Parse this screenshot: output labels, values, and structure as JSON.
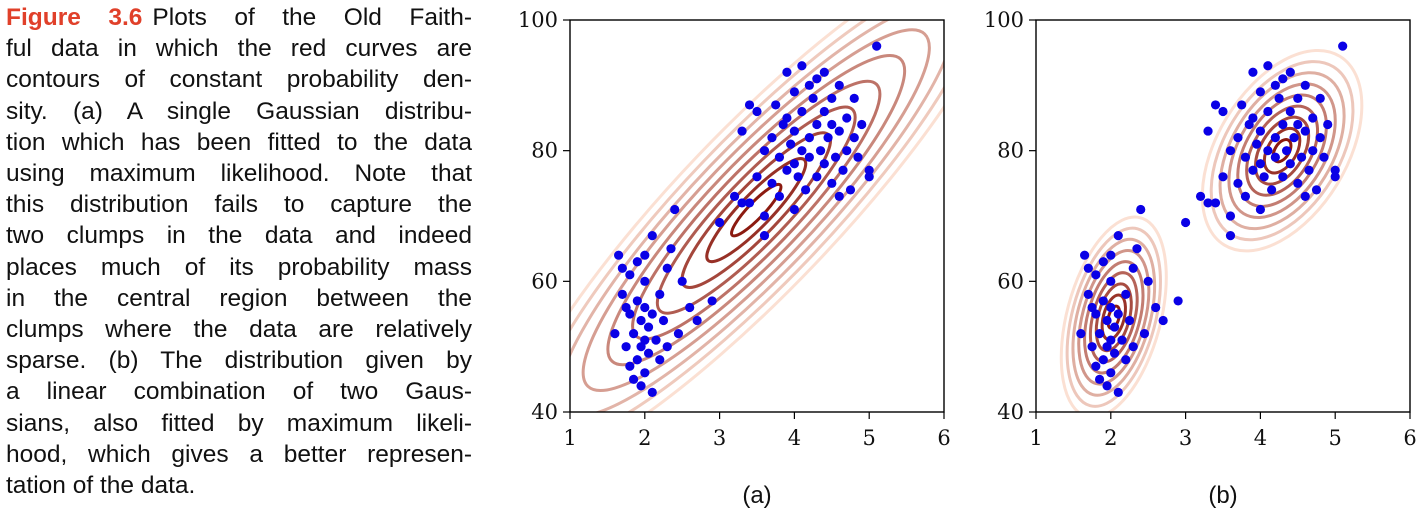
{
  "caption": {
    "figure_label": "Figure 3.6",
    "lines": [
      "Plots of the Old Faith-",
      "ful data in which the red curves are",
      "contours of constant probability den-",
      "sity. (a) A single Gaussian distribu-",
      "tion which has been fitted to the data",
      "using maximum likelihood. Note that",
      "this distribution fails to capture the",
      "two clumps in the data and indeed",
      "places much of its probability mass",
      "in the central region between the",
      "clumps where the data are relatively",
      "sparse. (b) The distribution given by",
      "a linear combination of two Gaus-",
      "sians, also fitted by maximum likeli-",
      "hood, which gives a better represen-",
      "tation of the data."
    ]
  },
  "colors": {
    "points": "#0a00e6",
    "contour_dark": "#8b1a10",
    "contour_light": "#fbe0d3",
    "caption_label": "#e0402a"
  },
  "chart_data": [
    {
      "type": "scatter",
      "panel_label": "(a)",
      "xlim": [
        1,
        6
      ],
      "ylim": [
        40,
        100
      ],
      "xticks": [
        "1",
        "2",
        "3",
        "4",
        "5",
        "6"
      ],
      "yticks": [
        "40",
        "60",
        "80",
        "100"
      ],
      "grid": false,
      "points": [
        [
          1.6,
          52
        ],
        [
          1.65,
          64
        ],
        [
          1.7,
          58
        ],
        [
          1.75,
          50
        ],
        [
          1.8,
          47
        ],
        [
          1.8,
          55
        ],
        [
          1.8,
          61
        ],
        [
          1.85,
          45
        ],
        [
          1.85,
          52
        ],
        [
          1.9,
          48
        ],
        [
          1.9,
          57
        ],
        [
          1.9,
          63
        ],
        [
          1.95,
          50
        ],
        [
          1.95,
          54
        ],
        [
          2.0,
          46
        ],
        [
          2.0,
          51
        ],
        [
          2.0,
          56
        ],
        [
          2.0,
          60
        ],
        [
          2.05,
          53
        ],
        [
          2.05,
          49
        ],
        [
          2.1,
          43
        ],
        [
          2.1,
          55
        ],
        [
          2.15,
          51
        ],
        [
          2.2,
          58
        ],
        [
          2.2,
          48
        ],
        [
          2.25,
          54
        ],
        [
          2.3,
          62
        ],
        [
          2.35,
          65
        ],
        [
          2.4,
          71
        ],
        [
          2.45,
          52
        ],
        [
          2.5,
          60
        ],
        [
          2.6,
          56
        ],
        [
          2.7,
          54
        ],
        [
          2.9,
          57
        ],
        [
          1.7,
          62
        ],
        [
          1.75,
          56
        ],
        [
          2.0,
          64
        ],
        [
          2.1,
          67
        ],
        [
          1.95,
          44
        ],
        [
          2.3,
          50
        ],
        [
          3.0,
          69
        ],
        [
          3.2,
          73
        ],
        [
          3.3,
          83
        ],
        [
          3.4,
          72
        ],
        [
          3.5,
          86
        ],
        [
          3.5,
          76
        ],
        [
          3.6,
          70
        ],
        [
          3.6,
          80
        ],
        [
          3.7,
          82
        ],
        [
          3.7,
          75
        ],
        [
          3.75,
          87
        ],
        [
          3.8,
          73
        ],
        [
          3.8,
          79
        ],
        [
          3.85,
          84
        ],
        [
          3.9,
          77
        ],
        [
          3.9,
          85
        ],
        [
          3.95,
          81
        ],
        [
          4.0,
          71
        ],
        [
          4.0,
          78
        ],
        [
          4.0,
          83
        ],
        [
          4.0,
          89
        ],
        [
          4.05,
          76
        ],
        [
          4.1,
          80
        ],
        [
          4.1,
          86
        ],
        [
          4.1,
          93
        ],
        [
          4.15,
          74
        ],
        [
          4.2,
          82
        ],
        [
          4.2,
          79
        ],
        [
          4.25,
          88
        ],
        [
          4.3,
          76
        ],
        [
          4.3,
          84
        ],
        [
          4.3,
          91
        ],
        [
          4.35,
          80
        ],
        [
          4.4,
          78
        ],
        [
          4.4,
          86
        ],
        [
          4.45,
          82
        ],
        [
          4.5,
          75
        ],
        [
          4.5,
          88
        ],
        [
          4.5,
          84
        ],
        [
          4.55,
          79
        ],
        [
          4.6,
          83
        ],
        [
          4.6,
          90
        ],
        [
          4.65,
          77
        ],
        [
          4.7,
          85
        ],
        [
          4.7,
          80
        ],
        [
          4.75,
          74
        ],
        [
          4.8,
          82
        ],
        [
          4.8,
          88
        ],
        [
          4.85,
          79
        ],
        [
          4.9,
          84
        ],
        [
          5.0,
          77
        ],
        [
          5.0,
          76
        ],
        [
          5.1,
          96
        ],
        [
          4.4,
          92
        ],
        [
          3.4,
          87
        ],
        [
          3.6,
          67
        ],
        [
          3.3,
          72
        ],
        [
          3.9,
          92
        ],
        [
          4.6,
          73
        ],
        [
          4.2,
          90
        ]
      ]
    },
    {
      "type": "scatter",
      "panel_label": "(b)",
      "xlim": [
        1,
        6
      ],
      "ylim": [
        40,
        100
      ],
      "xticks": [
        "1",
        "2",
        "3",
        "4",
        "5",
        "6"
      ],
      "yticks": [
        "40",
        "60",
        "80",
        "100"
      ],
      "grid": false,
      "points": [
        [
          1.6,
          52
        ],
        [
          1.65,
          64
        ],
        [
          1.7,
          58
        ],
        [
          1.75,
          50
        ],
        [
          1.8,
          47
        ],
        [
          1.8,
          55
        ],
        [
          1.8,
          61
        ],
        [
          1.85,
          45
        ],
        [
          1.85,
          52
        ],
        [
          1.9,
          48
        ],
        [
          1.9,
          57
        ],
        [
          1.9,
          63
        ],
        [
          1.95,
          50
        ],
        [
          1.95,
          54
        ],
        [
          2.0,
          46
        ],
        [
          2.0,
          51
        ],
        [
          2.0,
          56
        ],
        [
          2.0,
          60
        ],
        [
          2.05,
          53
        ],
        [
          2.05,
          49
        ],
        [
          2.1,
          43
        ],
        [
          2.1,
          55
        ],
        [
          2.15,
          51
        ],
        [
          2.2,
          58
        ],
        [
          2.2,
          48
        ],
        [
          2.25,
          54
        ],
        [
          2.3,
          62
        ],
        [
          2.35,
          65
        ],
        [
          2.4,
          71
        ],
        [
          2.45,
          52
        ],
        [
          2.5,
          60
        ],
        [
          2.6,
          56
        ],
        [
          2.7,
          54
        ],
        [
          2.9,
          57
        ],
        [
          1.7,
          62
        ],
        [
          1.75,
          56
        ],
        [
          2.0,
          64
        ],
        [
          2.1,
          67
        ],
        [
          1.95,
          44
        ],
        [
          2.3,
          50
        ],
        [
          3.0,
          69
        ],
        [
          3.2,
          73
        ],
        [
          3.3,
          83
        ],
        [
          3.4,
          72
        ],
        [
          3.5,
          86
        ],
        [
          3.5,
          76
        ],
        [
          3.6,
          70
        ],
        [
          3.6,
          80
        ],
        [
          3.7,
          82
        ],
        [
          3.7,
          75
        ],
        [
          3.75,
          87
        ],
        [
          3.8,
          73
        ],
        [
          3.8,
          79
        ],
        [
          3.85,
          84
        ],
        [
          3.9,
          77
        ],
        [
          3.9,
          85
        ],
        [
          3.95,
          81
        ],
        [
          4.0,
          71
        ],
        [
          4.0,
          78
        ],
        [
          4.0,
          83
        ],
        [
          4.0,
          89
        ],
        [
          4.05,
          76
        ],
        [
          4.1,
          80
        ],
        [
          4.1,
          86
        ],
        [
          4.1,
          93
        ],
        [
          4.15,
          74
        ],
        [
          4.2,
          82
        ],
        [
          4.2,
          79
        ],
        [
          4.25,
          88
        ],
        [
          4.3,
          76
        ],
        [
          4.3,
          84
        ],
        [
          4.3,
          91
        ],
        [
          4.35,
          80
        ],
        [
          4.4,
          78
        ],
        [
          4.4,
          86
        ],
        [
          4.45,
          82
        ],
        [
          4.5,
          75
        ],
        [
          4.5,
          88
        ],
        [
          4.5,
          84
        ],
        [
          4.55,
          79
        ],
        [
          4.6,
          83
        ],
        [
          4.6,
          90
        ],
        [
          4.65,
          77
        ],
        [
          4.7,
          85
        ],
        [
          4.7,
          80
        ],
        [
          4.75,
          74
        ],
        [
          4.8,
          82
        ],
        [
          4.8,
          88
        ],
        [
          4.85,
          79
        ],
        [
          4.9,
          84
        ],
        [
          5.0,
          77
        ],
        [
          5.0,
          76
        ],
        [
          5.1,
          96
        ],
        [
          4.4,
          92
        ],
        [
          3.4,
          87
        ],
        [
          3.6,
          67
        ],
        [
          3.3,
          72
        ],
        [
          3.9,
          92
        ],
        [
          4.6,
          73
        ],
        [
          4.2,
          90
        ]
      ]
    }
  ]
}
